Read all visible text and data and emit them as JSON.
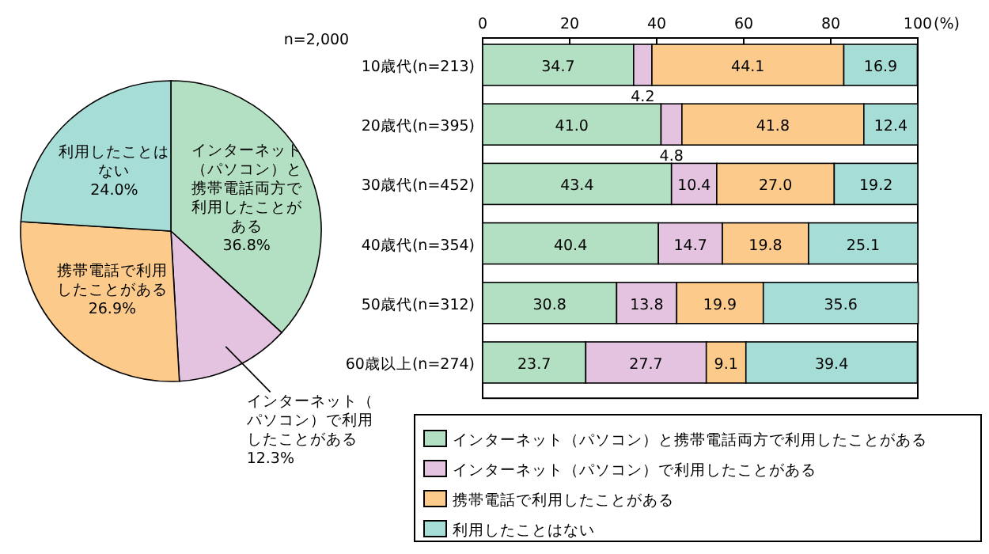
{
  "chart_data": [
    {
      "type": "pie",
      "categories": [
        "インターネット（パソコン）と携帯電話両方で利用したことがある",
        "インターネット（パソコン）で利用したことがある",
        "携帯電話で利用したことがある",
        "利用したことはない"
      ],
      "values": [
        36.8,
        12.3,
        26.9,
        24.0
      ],
      "colors": [
        "#b3e0c2",
        "#e3c3e0",
        "#fccb8c",
        "#a6ddd6"
      ],
      "value_labels": [
        "36.8%",
        "12.3%",
        "26.9%",
        "24.0%"
      ],
      "annotations": [
        "n=2,000"
      ]
    },
    {
      "type": "bar",
      "orientation": "horizontal",
      "stacked": true,
      "categories": [
        "10歳代(n=213)",
        "20歳代(n=395)",
        "30歳代(n=452)",
        "40歳代(n=354)",
        "50歳代(n=312)",
        "60歳以上(n=274)"
      ],
      "series": [
        {
          "name": "インターネット（パソコン）と携帯電話両方で利用したことがある",
          "color": "#b3e0c2",
          "values": [
            34.7,
            41.0,
            43.4,
            40.4,
            30.8,
            23.7
          ],
          "value_labels": [
            "34.7",
            "41.0",
            "43.4",
            "40.4",
            "30.8",
            "23.7"
          ]
        },
        {
          "name": "インターネット（パソコン）で利用したことがある",
          "color": "#e3c3e0",
          "values": [
            4.2,
            4.8,
            10.4,
            14.7,
            13.8,
            27.7
          ],
          "value_labels": [
            "4.2",
            "4.8",
            "10.4",
            "14.7",
            "13.8",
            "27.7"
          ]
        },
        {
          "name": "携帯電話で利用したことがある",
          "color": "#fccb8c",
          "values": [
            44.1,
            41.8,
            27.0,
            19.8,
            19.9,
            9.1
          ],
          "value_labels": [
            "44.1",
            "41.8",
            "27.0",
            "19.8",
            "19.9",
            "9.1"
          ]
        },
        {
          "name": "利用したことはない",
          "color": "#a6ddd6",
          "values": [
            16.9,
            12.4,
            19.2,
            25.1,
            35.6,
            39.4
          ],
          "value_labels": [
            "16.9",
            "12.4",
            "19.2",
            "25.1",
            "35.6",
            "39.4"
          ]
        }
      ],
      "xlim": [
        0,
        100
      ],
      "xticks": [
        0,
        20,
        40,
        60,
        80,
        100
      ],
      "xlabel": "(%)",
      "legend": "bottom"
    }
  ]
}
